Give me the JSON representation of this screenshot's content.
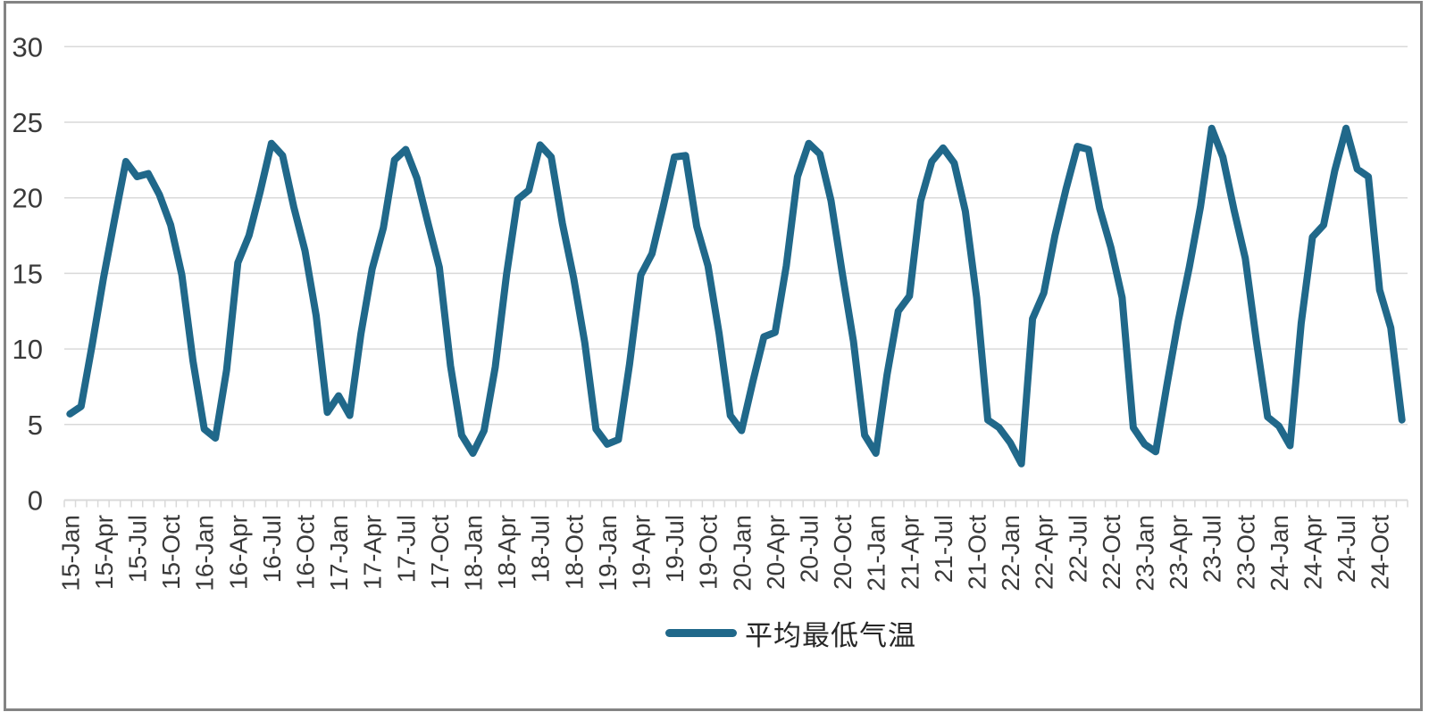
{
  "chart_data": {
    "type": "line",
    "title": "",
    "legend": {
      "label": "平均最低气温",
      "position": "bottom-center"
    },
    "x_axis": {
      "tick_labels": [
        "15-Jan",
        "15-Apr",
        "15-Jul",
        "15-Oct",
        "16-Jan",
        "16-Apr",
        "16-Jul",
        "16-Oct",
        "17-Jan",
        "17-Apr",
        "17-Jul",
        "17-Oct",
        "18-Jan",
        "18-Apr",
        "18-Jul",
        "18-Oct",
        "19-Jan",
        "19-Apr",
        "19-Jul",
        "19-Oct",
        "20-Jan",
        "20-Apr",
        "20-Jul",
        "20-Oct",
        "21-Jan",
        "21-Apr",
        "21-Jul",
        "21-Oct",
        "22-Jan",
        "22-Apr",
        "22-Jul",
        "22-Oct",
        "23-Jan",
        "23-Apr",
        "23-Jul",
        "23-Oct",
        "24-Jan",
        "24-Apr",
        "24-Jul",
        "24-Oct"
      ],
      "months_per_tick_label": 3,
      "label_rotation_deg": -90
    },
    "y_axis": {
      "ticks": [
        0,
        5,
        10,
        15,
        20,
        25,
        30
      ],
      "range": [
        0,
        30
      ]
    },
    "grid": "horizontal",
    "series": [
      {
        "name": "平均最低气温",
        "start_month": "15-Jan",
        "end_month": "24-Dec",
        "values": [
          5.7,
          6.2,
          10.3,
          14.7,
          18.6,
          22.4,
          21.4,
          21.6,
          20.2,
          18.2,
          14.9,
          9.2,
          4.7,
          4.1,
          8.6,
          15.7,
          17.5,
          20.4,
          23.6,
          22.8,
          19.4,
          16.5,
          12.2,
          5.8,
          6.9,
          5.6,
          11.0,
          15.3,
          18.0,
          22.5,
          23.2,
          21.3,
          18.3,
          15.4,
          8.9,
          4.3,
          3.1,
          4.6,
          8.8,
          14.9,
          19.9,
          20.5,
          23.5,
          22.7,
          18.3,
          14.7,
          10.4,
          4.7,
          3.7,
          4.0,
          9.0,
          14.9,
          16.3,
          19.4,
          22.7,
          22.8,
          18.1,
          15.5,
          11.0,
          5.6,
          4.6,
          7.8,
          10.8,
          11.1,
          15.5,
          21.4,
          23.6,
          22.9,
          19.8,
          15.0,
          10.5,
          4.3,
          3.1,
          8.3,
          12.5,
          13.5,
          19.8,
          22.4,
          23.3,
          22.3,
          19.1,
          13.4,
          5.3,
          4.8,
          3.8,
          2.4,
          12.0,
          13.7,
          17.5,
          20.6,
          23.4,
          23.2,
          19.3,
          16.7,
          13.4,
          4.8,
          3.7,
          3.2,
          7.6,
          11.8,
          15.4,
          19.4,
          24.6,
          22.7,
          19.2,
          16.0,
          10.5,
          5.5,
          4.9,
          3.6,
          11.7,
          17.4,
          18.2,
          21.8,
          24.6,
          21.9,
          21.4,
          13.9,
          11.4,
          5.3
        ]
      }
    ],
    "colors": {
      "line": "#20688A",
      "grid": "#D9D9D9",
      "axis_text": "#3A3A3A",
      "frame_border": "#848484",
      "background": "#FFFFFF"
    }
  }
}
